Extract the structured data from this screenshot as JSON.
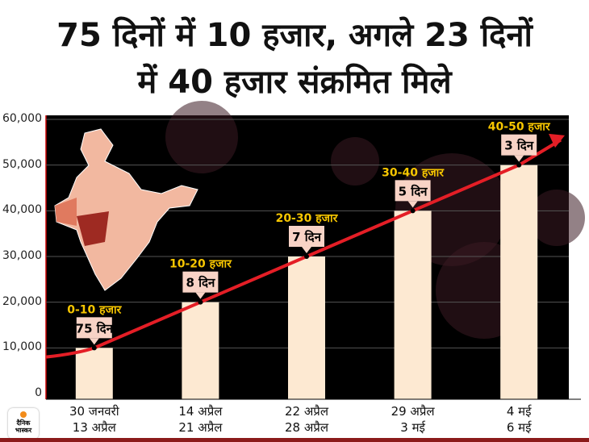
{
  "title_line1": "75 दिनों में 10 हजार, अगले 23 दिनों",
  "title_line2": "में 40 हजार संक्रमित मिले",
  "chart_data": {
    "type": "bar",
    "title": "75 दिनों में 10 हजार, अगले 23 दिनों में 40 हजार संक्रमित मिले",
    "ylim": [
      0,
      60000
    ],
    "yticks": [
      "0",
      "10,000",
      "20,000",
      "30,000",
      "40,000",
      "50,000",
      "60,000"
    ],
    "grid": true,
    "categories": [
      [
        "30 जनवरी",
        "13 अप्रैल"
      ],
      [
        "14 अप्रैल",
        "21 अप्रैल"
      ],
      [
        "22 अप्रैल",
        "28 अप्रैल"
      ],
      [
        "29 अप्रैल",
        "3 मई"
      ],
      [
        "4 मई",
        "6 मई"
      ]
    ],
    "values": [
      10000,
      20000,
      30000,
      40000,
      50000
    ],
    "range_labels": [
      "0-10 हजार",
      "10-20 हजार",
      "20-30 हजार",
      "30-40 हजार",
      "40-50 हजार"
    ],
    "day_labels": [
      "75 दिन",
      "8 दिन",
      "7 दिन",
      "5 दिन",
      "3 दिन"
    ],
    "colors": {
      "bar": "#fde9d2",
      "trend": "#e41e26",
      "range_label": "#f7c600",
      "day_box": "#f8d3c6",
      "background": "#000000"
    }
  },
  "logo": {
    "line1": "दैनिक",
    "line2": "भास्कर"
  }
}
